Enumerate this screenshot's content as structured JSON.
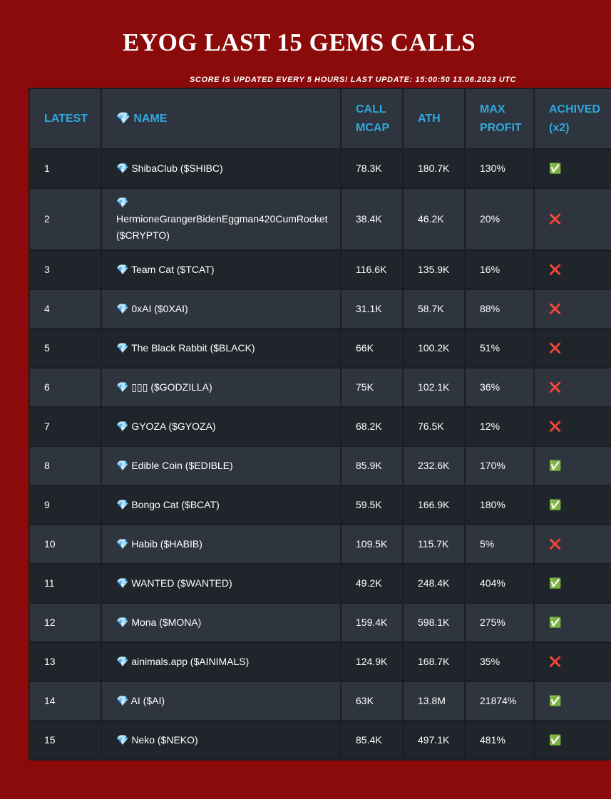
{
  "header": {
    "title": "EYOG LAST 15 GEMS CALLS",
    "subtitle": "SCORE IS UPDATED EVERY 5 HOURS! LAST UPDATE: 15:00:50 13.06.2023 UTC"
  },
  "table": {
    "columns": [
      "LATEST",
      "💎 NAME",
      "CALL MCAP",
      "ATH",
      "MAX PROFIT",
      "ACHIVED (x2)"
    ],
    "rows": [
      [
        "1",
        "💎 ShibaClub ($SHIBC)",
        "78.3K",
        "180.7K",
        "130%",
        "✅"
      ],
      [
        "2",
        "💎 HermioneGrangerBidenEggman420CumRocket ($CRYPTO)",
        "38.4K",
        "46.2K",
        "20%",
        "❌"
      ],
      [
        "3",
        "💎 Team Cat ($TCAT)",
        "116.6K",
        "135.9K",
        "16%",
        "❌"
      ],
      [
        "4",
        "💎 0xAI ($0XAI)",
        "31.1K",
        "58.7K",
        "88%",
        "❌"
      ],
      [
        "5",
        "💎 The Black Rabbit ($BLACK)",
        "66K",
        "100.2K",
        "51%",
        "❌"
      ],
      [
        "6",
        "💎 ▯▯▯ ($GODZILLA)",
        "75K",
        "102.1K",
        "36%",
        "❌"
      ],
      [
        "7",
        "💎 GYOZA ($GYOZA)",
        "68.2K",
        "76.5K",
        "12%",
        "❌"
      ],
      [
        "8",
        "💎 Edible Coin ($EDIBLE)",
        "85.9K",
        "232.6K",
        "170%",
        "✅"
      ],
      [
        "9",
        "💎 Bongo Cat ($BCAT)",
        "59.5K",
        "166.9K",
        "180%",
        "✅"
      ],
      [
        "10",
        "💎 Habib ($HABIB)",
        "109.5K",
        "115.7K",
        "5%",
        "❌"
      ],
      [
        "11",
        "💎 WANTED ($WANTED)",
        "49.2K",
        "248.4K",
        "404%",
        "✅"
      ],
      [
        "12",
        "💎 Mona ($MONA)",
        "159.4K",
        "598.1K",
        "275%",
        "✅"
      ],
      [
        "13",
        "💎 ainimals.app ($AINIMALS)",
        "124.9K",
        "168.7K",
        "35%",
        "❌"
      ],
      [
        "14",
        "💎 AI ($AI)",
        "63K",
        "13.8M",
        "21874%",
        "✅"
      ],
      [
        "15",
        "💎 Neko ($NEKO)",
        "85.4K",
        "497.1K",
        "481%",
        "✅"
      ]
    ]
  }
}
